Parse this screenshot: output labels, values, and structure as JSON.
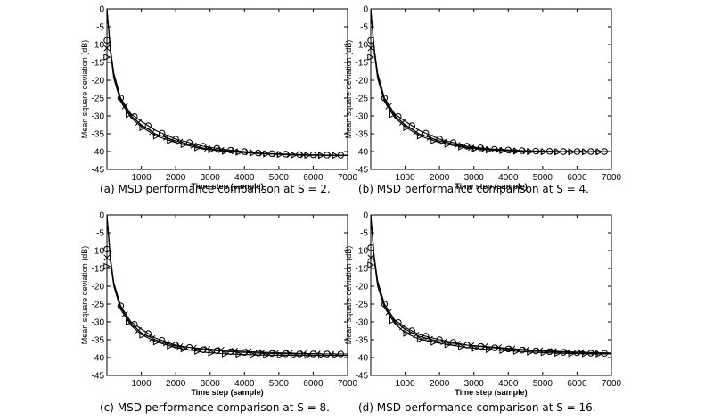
{
  "chart_data": [
    {
      "type": "line",
      "caption": "(a) MSD performance comparison at S = 2.",
      "xlabel": "Time step (sample)",
      "ylabel": "Mean square deviation (dB)",
      "xlim": [
        0,
        7000
      ],
      "ylim": [
        -45,
        0
      ],
      "xticks": [
        1000,
        2000,
        3000,
        4000,
        5000,
        6000,
        7000
      ],
      "yticks": [
        0,
        -5,
        -10,
        -15,
        -20,
        -25,
        -30,
        -35,
        -40,
        -45
      ],
      "grid": false,
      "series": [
        {
          "marker": "circle",
          "x": [
            0,
            100,
            200,
            400,
            700,
            1000,
            1400,
            2000,
            2800,
            3500,
            4500,
            5500,
            6500,
            7000
          ],
          "y": [
            0,
            -11,
            -18,
            -25,
            -29.5,
            -31.5,
            -34,
            -36.5,
            -38.5,
            -39.5,
            -40.5,
            -40.8,
            -41.0,
            -41.0
          ]
        },
        {
          "marker": "cross",
          "x": [
            0,
            100,
            200,
            400,
            700,
            1000,
            1400,
            2000,
            2800,
            3500,
            4500,
            5500,
            6500,
            7000
          ],
          "y": [
            0,
            -11,
            -19,
            -25.5,
            -30,
            -32.5,
            -35,
            -37,
            -39,
            -39.8,
            -40.5,
            -41.0,
            -41.0,
            -41.0
          ]
        },
        {
          "marker": "triangle",
          "x": [
            0,
            100,
            200,
            400,
            700,
            1000,
            1400,
            2000,
            2800,
            3500,
            4500,
            5500,
            6500,
            7000
          ],
          "y": [
            0,
            -12,
            -19.5,
            -26,
            -30.5,
            -33,
            -35.5,
            -37.5,
            -39.3,
            -40,
            -40.6,
            -41.0,
            -41.1,
            -41.1
          ]
        }
      ]
    },
    {
      "type": "line",
      "caption": "(b) MSD performance comparison at S = 4.",
      "xlabel": "Time step (sample)",
      "ylabel": "Mean square deviation (dB)",
      "xlim": [
        0,
        7000
      ],
      "ylim": [
        -45,
        0
      ],
      "xticks": [
        1000,
        2000,
        3000,
        4000,
        5000,
        6000,
        7000
      ],
      "yticks": [
        0,
        -5,
        -10,
        -15,
        -20,
        -25,
        -30,
        -35,
        -40,
        -45
      ],
      "grid": false,
      "series": [
        {
          "marker": "circle",
          "x": [
            0,
            100,
            200,
            400,
            700,
            1000,
            1400,
            2000,
            2800,
            3500,
            4500,
            5500,
            6500,
            7000
          ],
          "y": [
            0,
            -11,
            -18,
            -25,
            -29.5,
            -31.5,
            -34,
            -36.5,
            -38.5,
            -39.3,
            -39.8,
            -40.0,
            -40.0,
            -40.0
          ]
        },
        {
          "marker": "cross",
          "x": [
            0,
            100,
            200,
            400,
            700,
            1000,
            1400,
            2000,
            2800,
            3500,
            4500,
            5500,
            6500,
            7000
          ],
          "y": [
            0,
            -11,
            -19,
            -25.5,
            -30,
            -32.5,
            -35,
            -37,
            -38.8,
            -39.5,
            -39.9,
            -40.0,
            -40.0,
            -40.0
          ]
        },
        {
          "marker": "triangle",
          "x": [
            0,
            100,
            200,
            400,
            700,
            1000,
            1400,
            2000,
            2800,
            3500,
            4500,
            5500,
            6500,
            7000
          ],
          "y": [
            0,
            -12,
            -19.5,
            -26,
            -30.5,
            -33,
            -35.5,
            -37.5,
            -39,
            -39.6,
            -40.0,
            -40.1,
            -40.1,
            -40.1
          ]
        }
      ]
    },
    {
      "type": "line",
      "caption": "(c) MSD performance comparison at S = 8.",
      "xlabel": "Time step (sample)",
      "ylabel": "Mean square deviation (dB)",
      "xlim": [
        0,
        7000
      ],
      "ylim": [
        -45,
        0
      ],
      "xticks": [
        1000,
        2000,
        3000,
        4000,
        5000,
        6000,
        7000
      ],
      "yticks": [
        0,
        -5,
        -10,
        -15,
        -20,
        -25,
        -30,
        -35,
        -40,
        -45
      ],
      "grid": false,
      "series": [
        {
          "marker": "circle",
          "x": [
            0,
            100,
            200,
            400,
            700,
            1000,
            1400,
            2000,
            2800,
            3500,
            4500,
            5500,
            6500,
            7000
          ],
          "y": [
            0,
            -12,
            -19,
            -25.5,
            -30,
            -32,
            -34.5,
            -36.5,
            -37.8,
            -38.3,
            -38.8,
            -39.0,
            -39.0,
            -39.0
          ]
        },
        {
          "marker": "cross",
          "x": [
            0,
            100,
            200,
            400,
            700,
            1000,
            1400,
            2000,
            2800,
            3500,
            4500,
            5500,
            6500,
            7000
          ],
          "y": [
            0,
            -12,
            -19.5,
            -26,
            -30.5,
            -33,
            -35,
            -36.8,
            -37.5,
            -38.0,
            -38.5,
            -38.8,
            -39.0,
            -39.0
          ]
        },
        {
          "marker": "triangle",
          "x": [
            0,
            100,
            200,
            400,
            700,
            1000,
            1400,
            2000,
            2800,
            3500,
            4500,
            5500,
            6500,
            7000
          ],
          "y": [
            0,
            -13,
            -20,
            -26.5,
            -31,
            -33.5,
            -35.5,
            -37.2,
            -38.5,
            -39,
            -39.3,
            -39.4,
            -39.4,
            -39.4
          ]
        }
      ]
    },
    {
      "type": "line",
      "caption": "(d) MSD performance comparison at S = 16.",
      "xlabel": "Time step (sample)",
      "ylabel": "Mean square deviation (dB)",
      "xlim": [
        0,
        7000
      ],
      "ylim": [
        -45,
        0
      ],
      "xticks": [
        1000,
        2000,
        3000,
        4000,
        5000,
        6000,
        7000
      ],
      "yticks": [
        0,
        -5,
        -10,
        -15,
        -20,
        -25,
        -30,
        -35,
        -40,
        -45
      ],
      "grid": false,
      "series": [
        {
          "marker": "circle",
          "x": [
            0,
            100,
            200,
            400,
            700,
            1000,
            1400,
            2000,
            2800,
            3500,
            4500,
            5500,
            6500,
            7000
          ],
          "y": [
            0,
            -11.5,
            -18.5,
            -25,
            -29.5,
            -31.5,
            -33.5,
            -35,
            -36.5,
            -37.2,
            -38.0,
            -38.5,
            -38.8,
            -38.8
          ]
        },
        {
          "marker": "cross",
          "x": [
            0,
            100,
            200,
            400,
            700,
            1000,
            1400,
            2000,
            2800,
            3500,
            4500,
            5500,
            6500,
            7000
          ],
          "y": [
            0,
            -12,
            -19,
            -25.5,
            -30,
            -32,
            -34,
            -35.5,
            -36.5,
            -37.0,
            -37.8,
            -38.3,
            -38.6,
            -38.7
          ]
        },
        {
          "marker": "triangle",
          "x": [
            0,
            100,
            200,
            400,
            700,
            1000,
            1400,
            2000,
            2800,
            3500,
            4500,
            5500,
            6500,
            7000
          ],
          "y": [
            0,
            -12.5,
            -20,
            -26,
            -30.5,
            -33,
            -34.8,
            -36,
            -37.2,
            -37.8,
            -38.4,
            -38.8,
            -39.0,
            -39.0
          ]
        }
      ]
    }
  ]
}
